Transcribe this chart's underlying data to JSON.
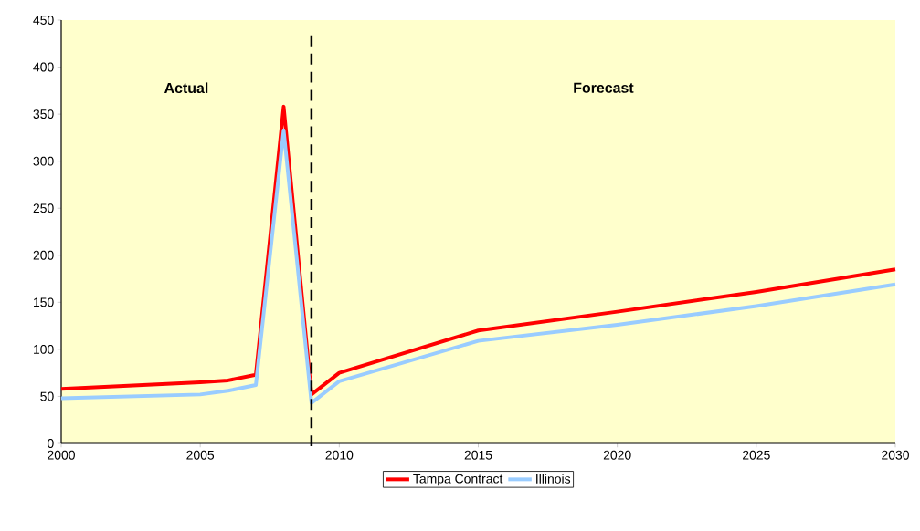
{
  "chart_data": {
    "type": "line",
    "x": [
      2000,
      2005,
      2006,
      2007,
      2008,
      2009,
      2010,
      2015,
      2020,
      2025,
      2030
    ],
    "series": [
      {
        "name": "Tampa Contract",
        "color": "#ff0000",
        "values": [
          58,
          65,
          67,
          73,
          358,
          52,
          75,
          120,
          140,
          161,
          185
        ]
      },
      {
        "name": "Illinois",
        "color": "#99ccff",
        "values": [
          48,
          52,
          56,
          62,
          333,
          43,
          66,
          109,
          126,
          146,
          169
        ]
      }
    ],
    "xlim": [
      2000,
      2030
    ],
    "xticks": [
      2000,
      2005,
      2010,
      2015,
      2020,
      2025,
      2030
    ],
    "ylim": [
      0,
      450
    ],
    "yticks": [
      0,
      50,
      100,
      150,
      200,
      250,
      300,
      350,
      400,
      450
    ],
    "ref_lines": [
      {
        "axis": "x",
        "value": 2009,
        "color": "#000000",
        "line_style": "dashed"
      }
    ],
    "annotations": [
      "Actual",
      "Forecast"
    ],
    "legend": "bottom",
    "grid": false,
    "marker": "none",
    "line_style": "solid"
  }
}
